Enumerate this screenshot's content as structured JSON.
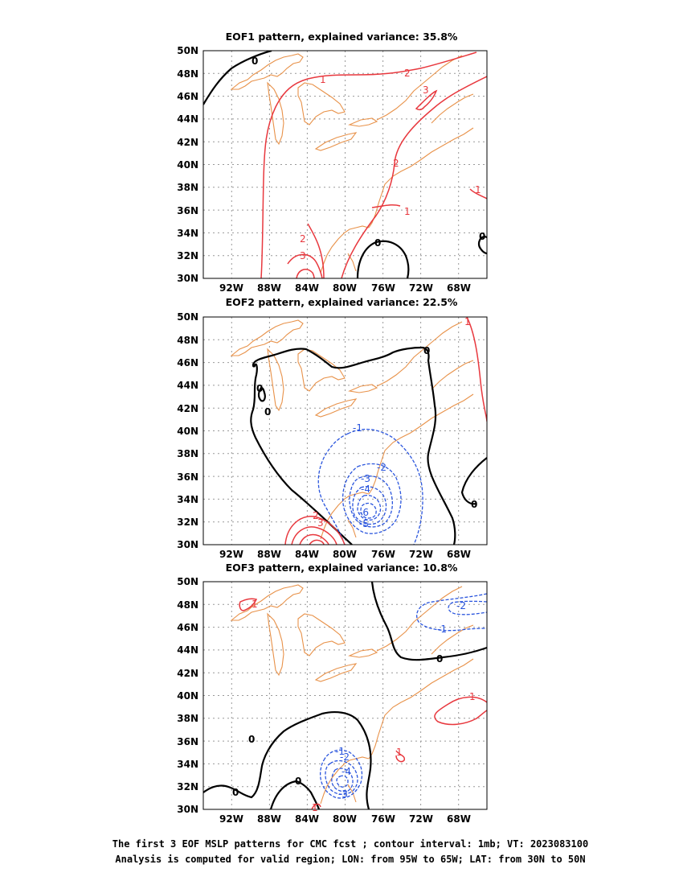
{
  "panels": [
    {
      "title": "EOF1 pattern, explained variance: 35.8%",
      "explained_variance_pct": 35.8,
      "contour_labels": [
        "0",
        "1",
        "2",
        "3",
        "2",
        "2",
        "1",
        "1",
        "2",
        "3",
        "0",
        "0"
      ]
    },
    {
      "title": "EOF2 pattern, explained variance: 22.5%",
      "explained_variance_pct": 22.5,
      "contour_labels": [
        "0",
        "0",
        "0",
        "-1",
        "-2",
        "-3",
        "-4",
        "-6",
        "-5",
        "2",
        "3",
        "0",
        "1"
      ]
    },
    {
      "title": "EOF3 pattern, explained variance: 10.8%",
      "explained_variance_pct": 10.8,
      "contour_labels": [
        "1",
        "-2",
        "-1",
        "0",
        "1",
        "0",
        "0",
        "0",
        "-1",
        "-2",
        "-4",
        "-3",
        "1",
        "1"
      ]
    }
  ],
  "axes": {
    "lat_labels": [
      "50N",
      "48N",
      "46N",
      "44N",
      "42N",
      "40N",
      "38N",
      "36N",
      "34N",
      "32N",
      "30N"
    ],
    "lon_labels": [
      "92W",
      "88W",
      "84W",
      "80W",
      "76W",
      "72W",
      "68W"
    ]
  },
  "caption": {
    "line1": "The first 3 EOF MSLP patterns for CMC fcst ; contour interval: 1mb; VT: 2023083100",
    "line2": "Analysis is computed for valid region; LON: from 95W to 65W; LAT: from 30N to 50N"
  },
  "colors": {
    "positive": "#e8383e",
    "negative": "#2a55dd",
    "zero": "#000000",
    "coastline": "#e8924a"
  }
}
